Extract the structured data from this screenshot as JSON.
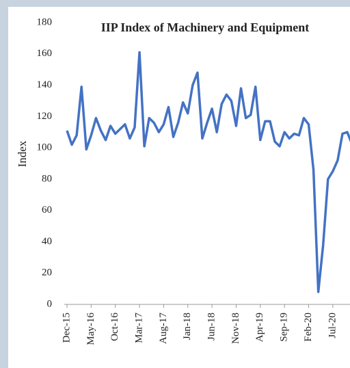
{
  "chart_data": {
    "type": "line",
    "title": "IIP Index of Machinery and Equipment",
    "y_label": "Index",
    "categories": [
      "Dec-15",
      null,
      null,
      null,
      null,
      "May-16",
      null,
      null,
      null,
      null,
      "Oct-16",
      null,
      null,
      null,
      null,
      "Mar-17",
      null,
      null,
      null,
      null,
      "Aug-17",
      null,
      null,
      null,
      null,
      "Jan-18",
      null,
      null,
      null,
      null,
      "Jun-18",
      null,
      null,
      null,
      null,
      "Nov-18",
      null,
      null,
      null,
      null,
      "Apr-19",
      null,
      null,
      null,
      null,
      "Sep-19",
      null,
      null,
      null,
      null,
      "Feb-20",
      null,
      null,
      null,
      null,
      "Jul-20",
      null,
      null,
      null,
      null
    ],
    "series": [
      {
        "name": "IIP Index",
        "color": "#4472c4",
        "values": [
          111,
          102,
          108,
          139,
          99,
          108,
          119,
          111,
          105,
          114,
          109,
          112,
          115,
          106,
          113,
          161,
          101,
          119,
          116,
          110,
          115,
          126,
          107,
          116,
          129,
          122,
          140,
          148,
          106,
          116,
          125,
          110,
          128,
          134,
          130,
          114,
          138,
          119,
          121,
          139,
          105,
          117,
          117,
          104,
          101,
          110,
          106,
          109,
          108,
          119,
          115,
          86,
          8,
          38,
          80,
          85,
          92,
          109,
          110,
          102
        ]
      }
    ],
    "ylim": [
      0,
      180
    ],
    "yticks": [
      0,
      20,
      40,
      60,
      80,
      100,
      120,
      140,
      160,
      180
    ]
  }
}
